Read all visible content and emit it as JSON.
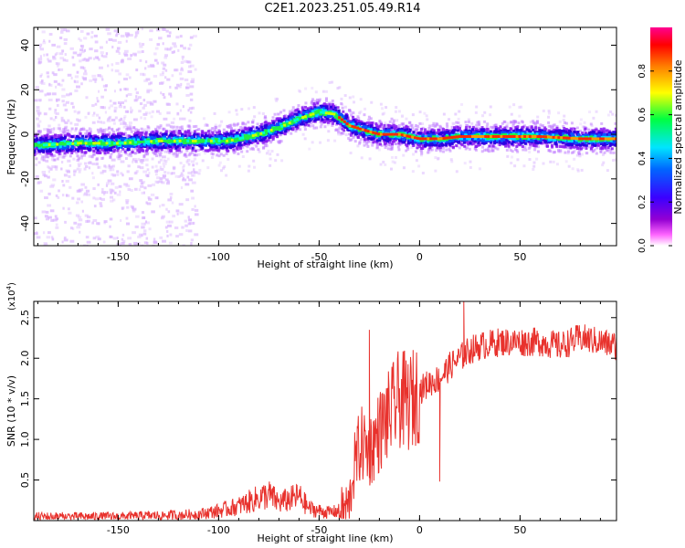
{
  "title": "C2E1.2023.251.05.49.R14",
  "chart_data": [
    {
      "type": "heatmap",
      "title": "C2E1.2023.251.05.49.R14",
      "xlabel": "Height of straight line (km)",
      "ylabel": "Frequency (Hz)",
      "xlim": [
        -192,
        98
      ],
      "ylim": [
        -50,
        48
      ],
      "x_ticks": [
        -150,
        -100,
        -50,
        0,
        50
      ],
      "y_ticks": [
        -40,
        -20,
        0,
        20,
        40
      ],
      "colorbar": {
        "label": "Normalized spectral amplitude",
        "range": [
          0.0,
          1.0
        ],
        "ticks": [
          "0.0",
          "0.2",
          "0.4",
          "0.6",
          "0.8"
        ],
        "colors": [
          "#ffffff",
          "#9400d3",
          "#4b0082",
          "#0000ff",
          "#00ffff",
          "#00ff00",
          "#ffff00",
          "#ff7f00",
          "#ff0000",
          "#ff0090"
        ]
      },
      "center_frequency_trace": {
        "x": [
          -192,
          -170,
          -150,
          -130,
          -110,
          -95,
          -80,
          -70,
          -60,
          -50,
          -42,
          -35,
          -28,
          -20,
          -10,
          0,
          10,
          20,
          40,
          60,
          80,
          98
        ],
        "y": [
          -5,
          -4,
          -4,
          -3,
          -3,
          -3,
          0,
          3,
          7,
          10,
          9,
          4,
          2,
          0,
          0,
          -2,
          -2,
          -1,
          -1,
          -1,
          -2,
          -2
        ]
      },
      "grid": false
    },
    {
      "type": "line",
      "xlabel": "Height of straight line (km)",
      "ylabel": "SNR (10 * v/v)",
      "y_scale_label": "(x10",
      "y_scale_exp": "4",
      "xlim": [
        -192,
        98
      ],
      "ylim": [
        0.0,
        2.7
      ],
      "x_ticks": [
        -150,
        -100,
        -50,
        0,
        50
      ],
      "y_ticks": [
        "0.5",
        "1.0",
        "1.5",
        "2.0",
        "2.5"
      ],
      "series_color": "#e8322d",
      "series": [
        {
          "x": [
            -192,
            -150,
            -120,
            -110,
            -100,
            -90,
            -80,
            -75,
            -70,
            -60,
            -55,
            -50,
            -45,
            -40,
            -35,
            -33,
            -30,
            -28,
            -25,
            -22,
            -20,
            -15,
            -10,
            -5,
            0,
            5,
            10,
            15,
            20,
            25,
            30,
            40,
            50,
            60,
            70,
            80,
            90,
            98
          ],
          "values": [
            0.05,
            0.05,
            0.07,
            0.08,
            0.12,
            0.18,
            0.28,
            0.32,
            0.22,
            0.3,
            0.15,
            0.12,
            0.1,
            0.12,
            0.2,
            0.6,
            0.9,
            0.95,
            0.85,
            1.0,
            1.1,
            1.3,
            1.5,
            1.45,
            1.6,
            1.7,
            1.75,
            1.9,
            2.0,
            2.1,
            2.15,
            2.2,
            2.2,
            2.2,
            2.15,
            2.25,
            2.2,
            2.15
          ]
        }
      ],
      "annotations": [
        {
          "x": -25,
          "y": 2.35,
          "note": "spike"
        },
        {
          "x": 22,
          "y": 2.7,
          "note": "spike"
        },
        {
          "x": 10,
          "y": 0.48,
          "note": "dip"
        }
      ],
      "grid": false
    }
  ]
}
